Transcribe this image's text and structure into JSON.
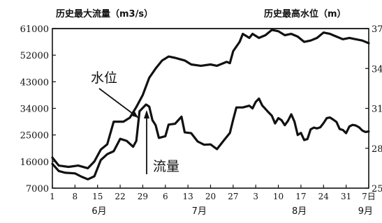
{
  "chart_data": {
    "type": "line",
    "left_axis_title": "历史最大流量（m3/s）",
    "right_axis_title": "历史最高水位（m）",
    "left_ticks": [
      61000,
      52000,
      43000,
      34000,
      25000,
      16000,
      7000
    ],
    "right_ticks": [
      37,
      34,
      31,
      28,
      25
    ],
    "ylim_left": [
      7000,
      61000
    ],
    "ylim_right": [
      25,
      37
    ],
    "x_ticks": [
      "1",
      "8",
      "15",
      "22",
      "29",
      "6",
      "13",
      "20",
      "27",
      "3",
      "10",
      "17",
      "24",
      "31",
      "7日"
    ],
    "x_tick_days": [
      1,
      8,
      15,
      22,
      29,
      36,
      43,
      50,
      57,
      64,
      71,
      78,
      85,
      92,
      99
    ],
    "xlim_days": [
      1,
      99
    ],
    "months": [
      "6月",
      "7月",
      "8月",
      "9月"
    ],
    "annotations": {
      "water_level": "水位",
      "flow": "流量"
    },
    "reference_line": {
      "axis": "left",
      "value": 61000
    },
    "series": [
      {
        "axis": "right",
        "unit": "m",
        "points": [
          [
            1,
            27.3
          ],
          [
            3,
            26.7
          ],
          [
            6,
            26.6
          ],
          [
            9,
            26.7
          ],
          [
            12,
            26.5
          ],
          [
            14,
            27.0
          ],
          [
            16,
            27.9
          ],
          [
            18,
            28.3
          ],
          [
            20,
            30.0
          ],
          [
            22,
            30.0
          ],
          [
            23,
            30.0
          ],
          [
            25,
            30.3
          ],
          [
            27,
            31.1
          ],
          [
            29,
            32.0
          ],
          [
            31,
            33.3
          ],
          [
            33,
            34.0
          ],
          [
            35,
            34.6
          ],
          [
            37,
            34.9
          ],
          [
            39,
            34.8
          ],
          [
            42,
            34.6
          ],
          [
            44,
            34.3
          ],
          [
            47,
            34.2
          ],
          [
            50,
            34.3
          ],
          [
            52,
            34.2
          ],
          [
            54,
            34.4
          ],
          [
            55,
            34.5
          ],
          [
            56,
            34.4
          ],
          [
            57,
            35.3
          ],
          [
            59,
            36.0
          ],
          [
            60,
            36.6
          ],
          [
            62,
            36.3
          ],
          [
            63,
            36.6
          ],
          [
            65,
            36.3
          ],
          [
            67,
            36.5
          ],
          [
            69,
            36.9
          ],
          [
            71,
            36.8
          ],
          [
            73,
            36.5
          ],
          [
            75,
            36.6
          ],
          [
            77,
            36.4
          ],
          [
            79,
            36.0
          ],
          [
            81,
            36.1
          ],
          [
            83,
            36.3
          ],
          [
            85,
            36.7
          ],
          [
            87,
            36.6
          ],
          [
            89,
            36.4
          ],
          [
            91,
            36.2
          ],
          [
            93,
            36.3
          ],
          [
            95,
            36.2
          ],
          [
            97,
            36.1
          ],
          [
            99,
            35.9
          ]
        ]
      },
      {
        "axis": "left",
        "unit": "m3/s",
        "points": [
          [
            1,
            15200
          ],
          [
            3,
            12800
          ],
          [
            5,
            12200
          ],
          [
            8,
            12000
          ],
          [
            10,
            10900
          ],
          [
            12,
            10000
          ],
          [
            14,
            11000
          ],
          [
            16,
            16500
          ],
          [
            18,
            18500
          ],
          [
            20,
            19500
          ],
          [
            22,
            23700
          ],
          [
            24,
            23000
          ],
          [
            26,
            21000
          ],
          [
            27,
            23000
          ],
          [
            28,
            33000
          ],
          [
            30,
            35300
          ],
          [
            31,
            34600
          ],
          [
            32,
            30000
          ],
          [
            33,
            28300
          ],
          [
            34,
            24000
          ],
          [
            36,
            24600
          ],
          [
            37,
            28500
          ],
          [
            39,
            28800
          ],
          [
            40,
            30000
          ],
          [
            41,
            31200
          ],
          [
            42,
            25900
          ],
          [
            44,
            25600
          ],
          [
            46,
            22800
          ],
          [
            48,
            21700
          ],
          [
            50,
            21800
          ],
          [
            51,
            21000
          ],
          [
            52,
            20200
          ],
          [
            54,
            23000
          ],
          [
            56,
            25700
          ],
          [
            57,
            30200
          ],
          [
            58,
            34300
          ],
          [
            60,
            34300
          ],
          [
            62,
            34900
          ],
          [
            63,
            34000
          ],
          [
            64,
            36200
          ],
          [
            65,
            37300
          ],
          [
            66,
            35000
          ],
          [
            68,
            32600
          ],
          [
            69,
            31500
          ],
          [
            70,
            28900
          ],
          [
            71,
            30700
          ],
          [
            72,
            30000
          ],
          [
            73,
            28300
          ],
          [
            74,
            29800
          ],
          [
            75,
            32000
          ],
          [
            76,
            29500
          ],
          [
            77,
            25000
          ],
          [
            78,
            25700
          ],
          [
            79,
            23300
          ],
          [
            80,
            23600
          ],
          [
            81,
            26900
          ],
          [
            82,
            27500
          ],
          [
            83,
            27200
          ],
          [
            84,
            27600
          ],
          [
            85,
            29000
          ],
          [
            86,
            30700
          ],
          [
            87,
            30900
          ],
          [
            88,
            30200
          ],
          [
            89,
            29400
          ],
          [
            90,
            27000
          ],
          [
            91,
            26700
          ],
          [
            92,
            25600
          ],
          [
            93,
            27900
          ],
          [
            94,
            28400
          ],
          [
            95,
            28200
          ],
          [
            96,
            27600
          ],
          [
            97,
            26500
          ],
          [
            98,
            26000
          ],
          [
            99,
            26200
          ]
        ]
      }
    ]
  }
}
